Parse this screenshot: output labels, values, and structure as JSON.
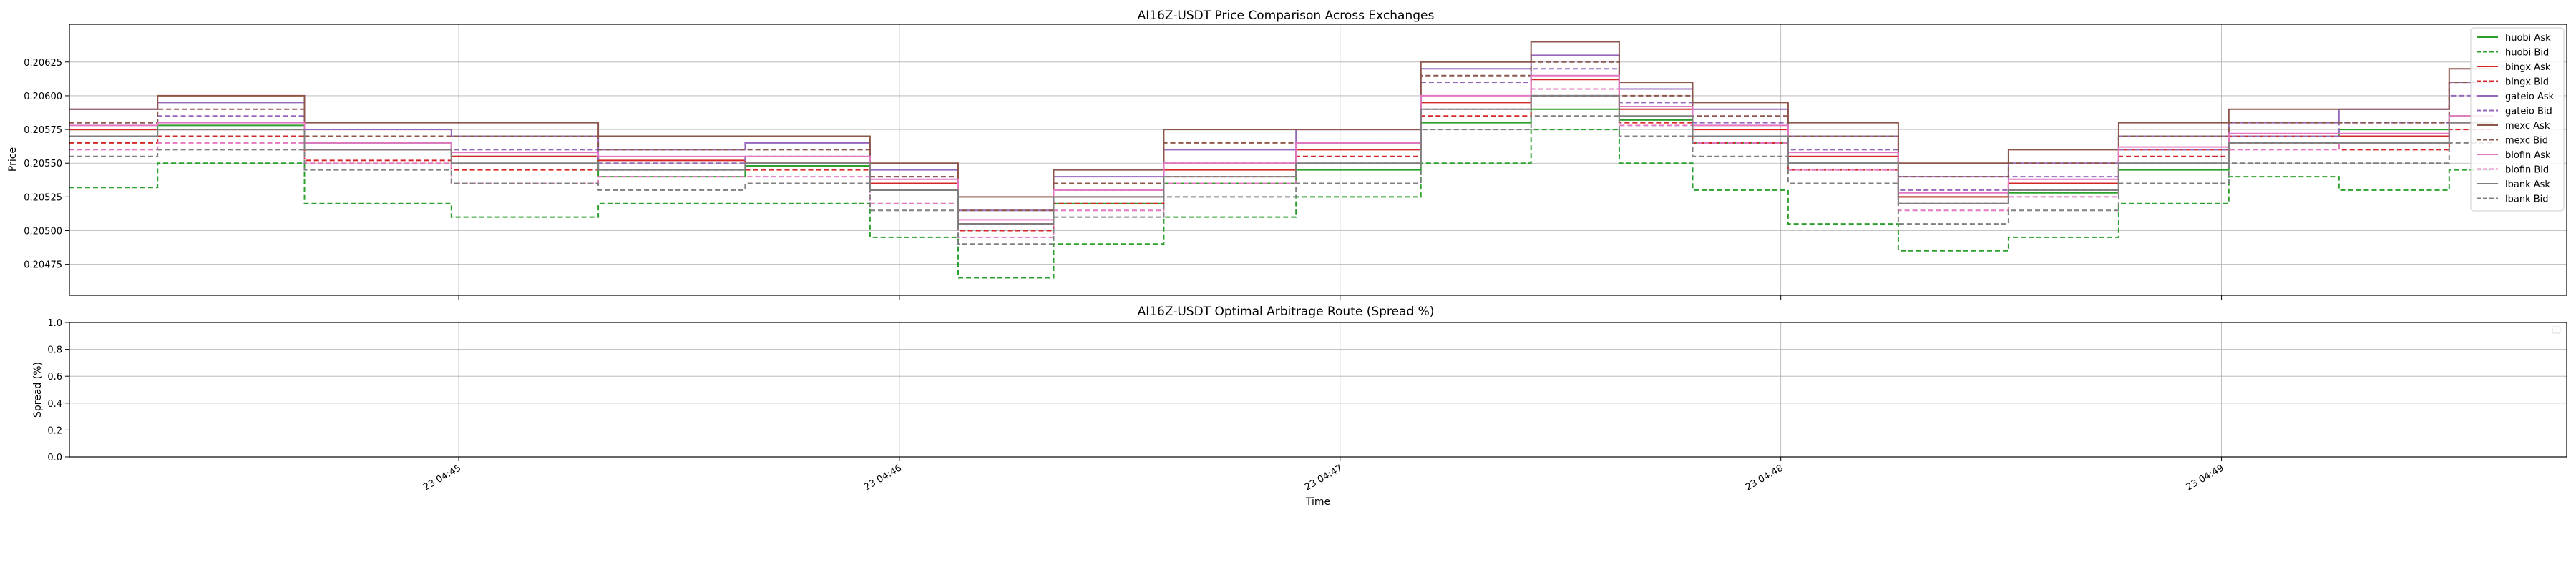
{
  "chart_data": [
    {
      "type": "line",
      "title": "AI16Z-USDT Price Comparison Across Exchanges",
      "xlabel": "",
      "ylabel": "Price",
      "ylim": [
        0.20452,
        0.20653
      ],
      "xlim": [
        0,
        340
      ],
      "yticks": [
        "0.20475",
        "0.20500",
        "0.20525",
        "0.20550",
        "0.20575",
        "0.20600",
        "0.20625"
      ],
      "ytick_values": [
        0.20475,
        0.205,
        0.20525,
        0.2055,
        0.20575,
        0.206,
        0.20625
      ],
      "xtick_values": [
        53,
        113,
        173,
        233,
        293
      ],
      "grid": true,
      "legend_position": "top-right",
      "x_unit": "seconds since 04:44:07",
      "x": [
        0,
        20,
        40,
        60,
        80,
        100,
        115,
        125,
        140,
        155,
        175,
        190,
        205,
        215,
        225,
        240,
        255,
        270,
        285,
        300,
        315,
        330
      ],
      "series": [
        {
          "name": "huobi Ask",
          "color": "#2ca02c",
          "style": "solid",
          "values": [
            0.20575,
            0.20578,
            0.20565,
            0.20555,
            0.2054,
            0.20548,
            0.2053,
            0.20505,
            0.2052,
            0.20535,
            0.20545,
            0.2058,
            0.2059,
            0.20582,
            0.20565,
            0.2055,
            0.20525,
            0.20528,
            0.20545,
            0.2057,
            0.20575,
            0.20585
          ]
        },
        {
          "name": "huobi Bid",
          "color": "#2ca02c",
          "style": "dashed",
          "values": [
            0.20532,
            0.2055,
            0.2052,
            0.2051,
            0.2052,
            0.2052,
            0.20495,
            0.20465,
            0.2049,
            0.2051,
            0.20525,
            0.2055,
            0.20575,
            0.2055,
            0.2053,
            0.20505,
            0.20485,
            0.20495,
            0.2052,
            0.2054,
            0.2053,
            0.20545
          ]
        },
        {
          "name": "bingx Ask",
          "color": "#d62728",
          "style": "solid",
          "values": [
            0.20575,
            0.20575,
            0.2056,
            0.20555,
            0.20552,
            0.2055,
            0.20535,
            0.20505,
            0.20525,
            0.20545,
            0.2056,
            0.20595,
            0.20612,
            0.2059,
            0.20575,
            0.20555,
            0.20525,
            0.20535,
            0.2056,
            0.2057,
            0.2057,
            0.2058
          ]
        },
        {
          "name": "bingx Bid",
          "color": "#d62728",
          "style": "dashed",
          "values": [
            0.20565,
            0.2057,
            0.20552,
            0.20545,
            0.20545,
            0.20545,
            0.2053,
            0.205,
            0.2052,
            0.2054,
            0.20555,
            0.20585,
            0.206,
            0.2058,
            0.20565,
            0.20545,
            0.2052,
            0.2053,
            0.20555,
            0.20565,
            0.2056,
            0.20575
          ]
        },
        {
          "name": "gateio Ask",
          "color": "#9467bd",
          "style": "solid",
          "values": [
            0.2059,
            0.20595,
            0.20575,
            0.2057,
            0.2056,
            0.20565,
            0.20545,
            0.20515,
            0.2054,
            0.2056,
            0.20575,
            0.2062,
            0.2063,
            0.20605,
            0.2059,
            0.2057,
            0.2054,
            0.2055,
            0.2057,
            0.2058,
            0.2059,
            0.2061
          ]
        },
        {
          "name": "gateio Bid",
          "color": "#9467bd",
          "style": "dashed",
          "values": [
            0.2058,
            0.20585,
            0.20565,
            0.2056,
            0.2055,
            0.20555,
            0.2054,
            0.20505,
            0.2053,
            0.2055,
            0.20565,
            0.2061,
            0.2062,
            0.20595,
            0.2058,
            0.2056,
            0.2053,
            0.2054,
            0.2056,
            0.2057,
            0.2058,
            0.206
          ]
        },
        {
          "name": "mexc Ask",
          "color": "#8c564b",
          "style": "solid",
          "values": [
            0.2059,
            0.206,
            0.2058,
            0.2058,
            0.2057,
            0.2057,
            0.2055,
            0.20525,
            0.20545,
            0.20575,
            0.20575,
            0.20625,
            0.2064,
            0.2061,
            0.20595,
            0.2058,
            0.2055,
            0.2056,
            0.2058,
            0.2059,
            0.2059,
            0.2062
          ]
        },
        {
          "name": "mexc Bid",
          "color": "#8c564b",
          "style": "dashed",
          "values": [
            0.2058,
            0.2059,
            0.2057,
            0.2057,
            0.2056,
            0.2056,
            0.2054,
            0.20515,
            0.20535,
            0.20565,
            0.20565,
            0.20615,
            0.20625,
            0.206,
            0.20585,
            0.2057,
            0.2054,
            0.2055,
            0.2057,
            0.2058,
            0.2058,
            0.2061
          ]
        },
        {
          "name": "blofin Ask",
          "color": "#e377c2",
          "style": "solid",
          "values": [
            0.20578,
            0.2058,
            0.20565,
            0.20558,
            0.20555,
            0.20555,
            0.20538,
            0.20508,
            0.2053,
            0.2055,
            0.20565,
            0.206,
            0.20615,
            0.20592,
            0.20578,
            0.20558,
            0.20528,
            0.20538,
            0.20562,
            0.20572,
            0.20572,
            0.20585
          ]
        },
        {
          "name": "blofin Bid",
          "color": "#e377c2",
          "style": "dashed",
          "values": [
            0.2056,
            0.20565,
            0.2055,
            0.20535,
            0.2054,
            0.2054,
            0.2052,
            0.20495,
            0.20515,
            0.20535,
            0.2055,
            0.2059,
            0.20605,
            0.20578,
            0.20565,
            0.20545,
            0.20515,
            0.20525,
            0.2055,
            0.2056,
            0.20565,
            0.2058
          ]
        },
        {
          "name": "lbank Ask",
          "color": "#7f7f7f",
          "style": "solid",
          "values": [
            0.2057,
            0.20575,
            0.2056,
            0.2055,
            0.20545,
            0.2055,
            0.2053,
            0.20505,
            0.20525,
            0.2054,
            0.2055,
            0.2059,
            0.206,
            0.20585,
            0.2057,
            0.2055,
            0.2052,
            0.2053,
            0.2055,
            0.20565,
            0.20565,
            0.2058
          ]
        },
        {
          "name": "lbank Bid",
          "color": "#7f7f7f",
          "style": "dashed",
          "values": [
            0.20555,
            0.2056,
            0.20545,
            0.20535,
            0.2053,
            0.20535,
            0.20515,
            0.2049,
            0.2051,
            0.20525,
            0.20535,
            0.20575,
            0.20585,
            0.2057,
            0.20555,
            0.20535,
            0.20505,
            0.20515,
            0.20535,
            0.2055,
            0.2055,
            0.20565
          ]
        }
      ]
    },
    {
      "type": "line",
      "title": "AI16Z-USDT Optimal Arbitrage Route (Spread %)",
      "xlabel": "Time",
      "ylabel": "Spread (%)",
      "ylim": [
        0.0,
        1.0
      ],
      "yticks": [
        "0.0",
        "0.2",
        "0.4",
        "0.6",
        "0.8",
        "1.0"
      ],
      "ytick_values": [
        0.0,
        0.2,
        0.4,
        0.6,
        0.8,
        1.0
      ],
      "xticks": [
        "23 04:45",
        "23 04:46",
        "23 04:47",
        "23 04:48",
        "23 04:49"
      ],
      "xtick_values": [
        53,
        113,
        173,
        233,
        293
      ],
      "grid": true,
      "series": []
    }
  ]
}
